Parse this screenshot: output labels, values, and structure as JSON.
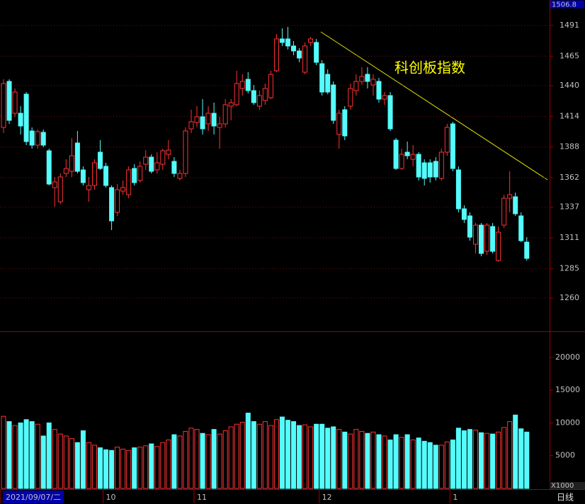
{
  "chart_data": {
    "type": "candlestick",
    "annotation": "科创板指数",
    "up_color": "#ff3232",
    "down_color": "#54fcfc",
    "grid": true,
    "top_label": 1506.8,
    "ylim": [
      1231.8,
      1512.6
    ],
    "yticks": [
      1491,
      1465,
      1440,
      1414,
      1388,
      1362,
      1337,
      1311,
      1285,
      1260
    ],
    "x_labels": [
      {
        "value": 0,
        "label": "2021/09/07/二"
      },
      {
        "value": 18,
        "label": "10"
      },
      {
        "value": 34,
        "label": "11"
      },
      {
        "value": 56,
        "label": "12"
      },
      {
        "value": 79,
        "label": "1"
      }
    ],
    "period": "日线",
    "candles": {
      "open": [
        1404.6,
        1443.6,
        1416.6,
        1416.6,
        1432.8,
        1401.6,
        1389.6,
        1400.4,
        1384.8,
        1353.6,
        1341.6,
        1365.6,
        1367.4,
        1391.4,
        1368.6,
        1351.8,
        1355.4,
        1383.6,
        1371.6,
        1353.6,
        1332.6,
        1350.6,
        1347.6,
        1369.8,
        1359.6,
        1373.4,
        1379.4,
        1368.6,
        1373.4,
        1381.8,
        1375.8,
        1361.4,
        1365.6,
        1403.4,
        1408.8,
        1413.6,
        1407.6,
        1416.6,
        1404.6,
        1407.6,
        1422.6,
        1423.8,
        1437.6,
        1445.4,
        1435.8,
        1422.6,
        1427.4,
        1429.8,
        1452.6,
        1479.6,
        1479.6,
        1473.6,
        1469.4,
        1451.4,
        1476.6,
        1476.6,
        1458.6,
        1449.6,
        1440.6,
        1398.6,
        1419.6,
        1422.6,
        1435.8,
        1443.6,
        1449.6,
        1440.6,
        1443.6,
        1428.6,
        1431.6,
        1393.8,
        1369.8,
        1383.6,
        1377.6,
        1381.8,
        1374.6,
        1374.6,
        1375.8,
        1361.4,
        1383.6,
        1407.6,
        1368.6,
        1335.6,
        1329.6,
        1305.6,
        1321.8,
        1299.6,
        1320.6,
        1291.8,
        1321.8,
        1344.6,
        1345.8,
        1329.6,
        1307.4
      ],
      "high": [
        1445.4,
        1445.4,
        1437.6,
        1422.6,
        1434.6,
        1404.6,
        1402.8,
        1402.8,
        1386.6,
        1362.6,
        1365.6,
        1377.6,
        1395.6,
        1401.6,
        1371.6,
        1362.6,
        1377.6,
        1393.8,
        1374.6,
        1355.4,
        1356.6,
        1359.6,
        1371.6,
        1373.4,
        1375.8,
        1385.4,
        1381.8,
        1383.6,
        1386.6,
        1393.8,
        1379.4,
        1368.6,
        1404.6,
        1419.6,
        1422.6,
        1428.6,
        1422.6,
        1425.6,
        1413.6,
        1428.6,
        1428.6,
        1452.6,
        1449.6,
        1451.4,
        1440.6,
        1435.8,
        1441.8,
        1452.6,
        1483.8,
        1488.6,
        1489.8,
        1477.8,
        1471.8,
        1476.6,
        1481.4,
        1479.6,
        1461.6,
        1453.8,
        1443.6,
        1419.6,
        1422.6,
        1441.8,
        1449.6,
        1455.6,
        1455.6,
        1449.6,
        1446.6,
        1434.6,
        1434.6,
        1395.6,
        1386.6,
        1392.6,
        1389.6,
        1383.6,
        1377.6,
        1377.6,
        1379.4,
        1386.6,
        1407.6,
        1409.4,
        1371.6,
        1338.6,
        1332.6,
        1323.6,
        1323.6,
        1323.6,
        1323.6,
        1320.6,
        1347.6,
        1367.4,
        1349.4,
        1332.6,
        1311.6
      ],
      "low": [
        1399.8,
        1407.6,
        1413.6,
        1398.6,
        1389.6,
        1386.6,
        1386.6,
        1387.8,
        1355.4,
        1337.4,
        1339.8,
        1362.6,
        1362.6,
        1365.6,
        1355.4,
        1341.6,
        1351.8,
        1368.6,
        1353.6,
        1317.6,
        1329.6,
        1347.6,
        1344.6,
        1355.4,
        1357.8,
        1368.6,
        1365.6,
        1365.6,
        1368.6,
        1377.6,
        1362.6,
        1359.6,
        1362.6,
        1399.8,
        1404.6,
        1398.6,
        1401.6,
        1398.6,
        1386.6,
        1404.6,
        1410.6,
        1422.6,
        1431.6,
        1433.4,
        1423.8,
        1419.6,
        1423.8,
        1428.6,
        1451.4,
        1473.6,
        1470.6,
        1465.8,
        1459.8,
        1449.6,
        1473.6,
        1457.4,
        1431.6,
        1432.8,
        1407.6,
        1386.6,
        1393.8,
        1419.6,
        1431.6,
        1440.6,
        1437.6,
        1431.6,
        1425.6,
        1423.8,
        1401.6,
        1368.6,
        1368.6,
        1377.6,
        1371.6,
        1359.6,
        1355.4,
        1357.8,
        1359.6,
        1359.6,
        1380.6,
        1367.4,
        1332.6,
        1323.6,
        1308.6,
        1297.8,
        1295.4,
        1296.6,
        1297.8,
        1290.6,
        1319.4,
        1332.6,
        1329.6,
        1307.4,
        1291.8
      ],
      "close": [
        1441.8,
        1410.6,
        1434.6,
        1405.8,
        1392.6,
        1389.6,
        1401.0,
        1389.6,
        1356.6,
        1358.4,
        1362.6,
        1369.8,
        1380.6,
        1367.4,
        1357.8,
        1355.4,
        1374.6,
        1369.8,
        1355.4,
        1325.4,
        1351.8,
        1353.6,
        1368.6,
        1357.8,
        1371.6,
        1379.4,
        1367.4,
        1374.6,
        1384.8,
        1385.4,
        1365.6,
        1365.6,
        1401.6,
        1409.4,
        1413.6,
        1403.4,
        1416.6,
        1405.8,
        1407.6,
        1423.8,
        1425.6,
        1441.8,
        1443.6,
        1435.8,
        1425.6,
        1431.6,
        1437.6,
        1449.6,
        1479.6,
        1476.6,
        1473.6,
        1469.4,
        1463.4,
        1473.6,
        1479.6,
        1459.8,
        1434.6,
        1434.6,
        1410.6,
        1416.6,
        1397.4,
        1437.6,
        1443.6,
        1447.8,
        1443.6,
        1445.4,
        1428.6,
        1431.6,
        1403.4,
        1369.8,
        1381.8,
        1380.6,
        1381.8,
        1362.6,
        1361.4,
        1362.6,
        1362.6,
        1383.6,
        1404.6,
        1369.8,
        1335.6,
        1326.6,
        1311.6,
        1321.8,
        1297.8,
        1321.8,
        1299.6,
        1315.8,
        1344.6,
        1347.6,
        1331.4,
        1308.6,
        1293.6
      ]
    },
    "volume": {
      "values": [
        11000,
        10200,
        9600,
        10000,
        10500,
        10200,
        9800,
        8000,
        10000,
        9000,
        8300,
        8000,
        7600,
        7000,
        8800,
        7000,
        6600,
        6200,
        5900,
        5800,
        6300,
        6000,
        5800,
        6200,
        6300,
        6500,
        6800,
        6400,
        7000,
        7400,
        8200,
        8000,
        8700,
        9200,
        9000,
        8400,
        8200,
        9000,
        8300,
        8800,
        9400,
        9800,
        10100,
        11500,
        10200,
        9800,
        10200,
        9600,
        10500,
        10900,
        10400,
        10200,
        9600,
        9700,
        9400,
        9800,
        9800,
        9200,
        9400,
        9000,
        8600,
        8300,
        9000,
        8700,
        8400,
        8600,
        8200,
        8000,
        7400,
        8200,
        7800,
        8200,
        7400,
        7700,
        7200,
        7000,
        6600,
        6600,
        7100,
        7400,
        9200,
        8800,
        9000,
        8900,
        8500,
        8400,
        8300,
        8600,
        9300,
        10200,
        11200,
        9100,
        8600
      ],
      "ylim": [
        0,
        23760
      ],
      "yticks": [
        5000,
        10000,
        15000,
        20000
      ],
      "unit": "X1000"
    }
  }
}
